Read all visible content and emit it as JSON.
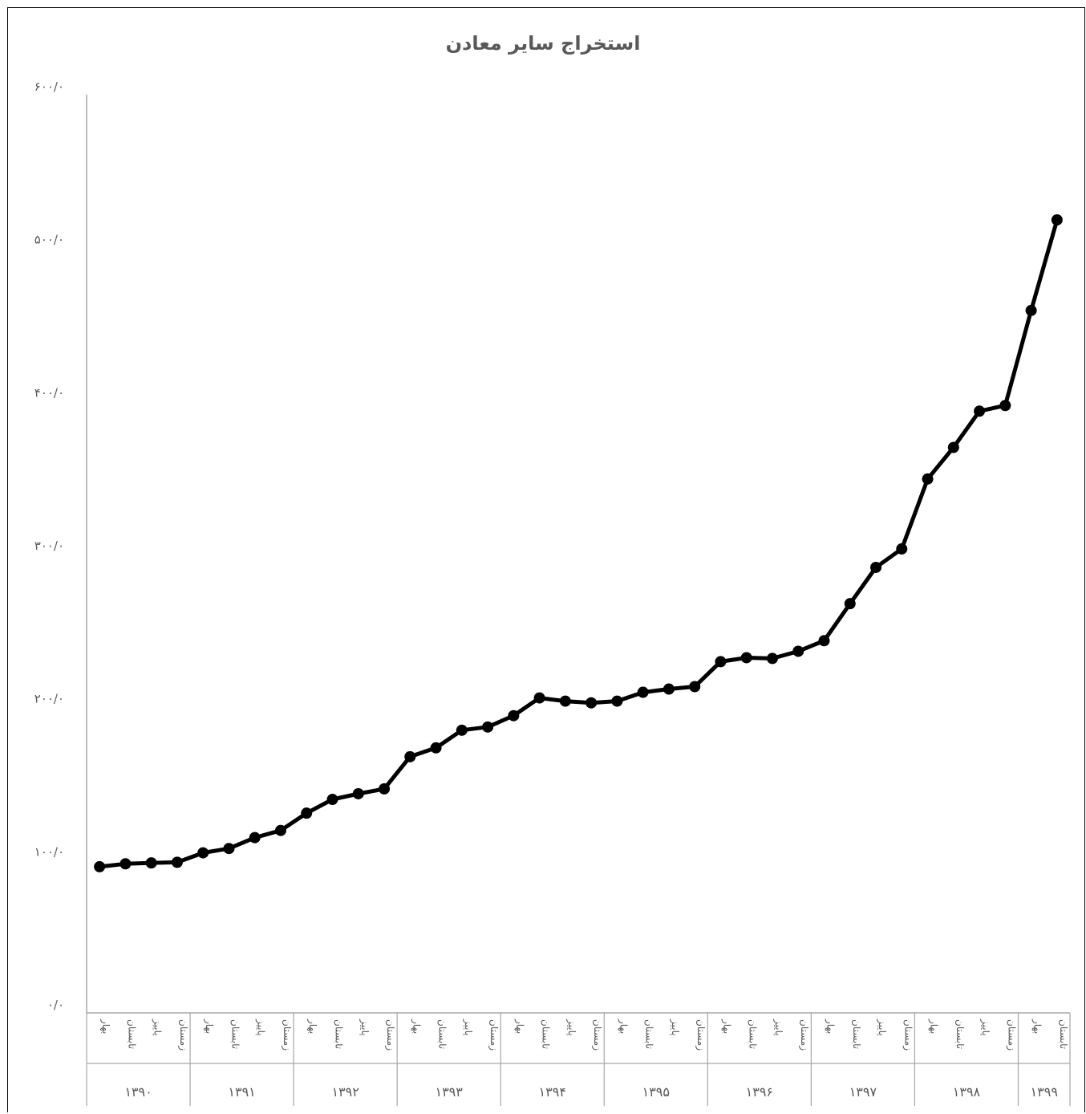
{
  "chart_data": {
    "type": "line",
    "title": "استخراج سایر معادن",
    "xlabel": "",
    "ylabel": "",
    "ylim": [
      0,
      600
    ],
    "yticks": [
      {
        "value": 0,
        "label": "۰/۰"
      },
      {
        "value": 100,
        "label": "۱۰۰/۰"
      },
      {
        "value": 200,
        "label": "۲۰۰/۰"
      },
      {
        "value": 300,
        "label": "۳۰۰/۰"
      },
      {
        "value": 400,
        "label": "۴۰۰/۰"
      },
      {
        "value": 500,
        "label": "۵۰۰/۰"
      },
      {
        "value": 600,
        "label": "۶۰۰/۰"
      }
    ],
    "grid": false,
    "legend": "none",
    "line_color": "#000000",
    "years": [
      {
        "label": "۱۳۹۰",
        "quarters": [
          "بهار",
          "تابستان",
          "پاییز",
          "زمستان"
        ]
      },
      {
        "label": "۱۳۹۱",
        "quarters": [
          "بهار",
          "تابستان",
          "پاییز",
          "زمستان"
        ]
      },
      {
        "label": "۱۳۹۲",
        "quarters": [
          "بهار",
          "تابستان",
          "پاییز",
          "زمستان"
        ]
      },
      {
        "label": "۱۳۹۳",
        "quarters": [
          "بهار",
          "تابستان",
          "پاییز",
          "زمستان"
        ]
      },
      {
        "label": "۱۳۹۴",
        "quarters": [
          "بهار",
          "تابستان",
          "پاییز",
          "زمستان"
        ]
      },
      {
        "label": "۱۳۹۵",
        "quarters": [
          "بهار",
          "تابستان",
          "پاییز",
          "زمستان"
        ]
      },
      {
        "label": "۱۳۹۶",
        "quarters": [
          "بهار",
          "تابستان",
          "پاییز",
          "زمستان"
        ]
      },
      {
        "label": "۱۳۹۷",
        "quarters": [
          "بهار",
          "تابستان",
          "پاییز",
          "زمستان"
        ]
      },
      {
        "label": "۱۳۹۸",
        "quarters": [
          "بهار",
          "تابستان",
          "پاییز",
          "زمستان"
        ]
      },
      {
        "label": "۱۳۹۹",
        "quarters": [
          "بهار",
          "تابستان"
        ]
      }
    ],
    "values": [
      95.5,
      97.4,
      98.0,
      98.4,
      104.6,
      107.4,
      114.5,
      119.2,
      130.5,
      139.5,
      143.2,
      146.4,
      167.4,
      173.2,
      184.7,
      186.8,
      194.2,
      205.8,
      203.7,
      202.6,
      203.7,
      209.5,
      211.6,
      213.2,
      229.5,
      232.1,
      231.6,
      236.3,
      243.2,
      267.4,
      291.1,
      303.2,
      348.9,
      369.5,
      393.2,
      396.9,
      459.0,
      518.2
    ]
  }
}
